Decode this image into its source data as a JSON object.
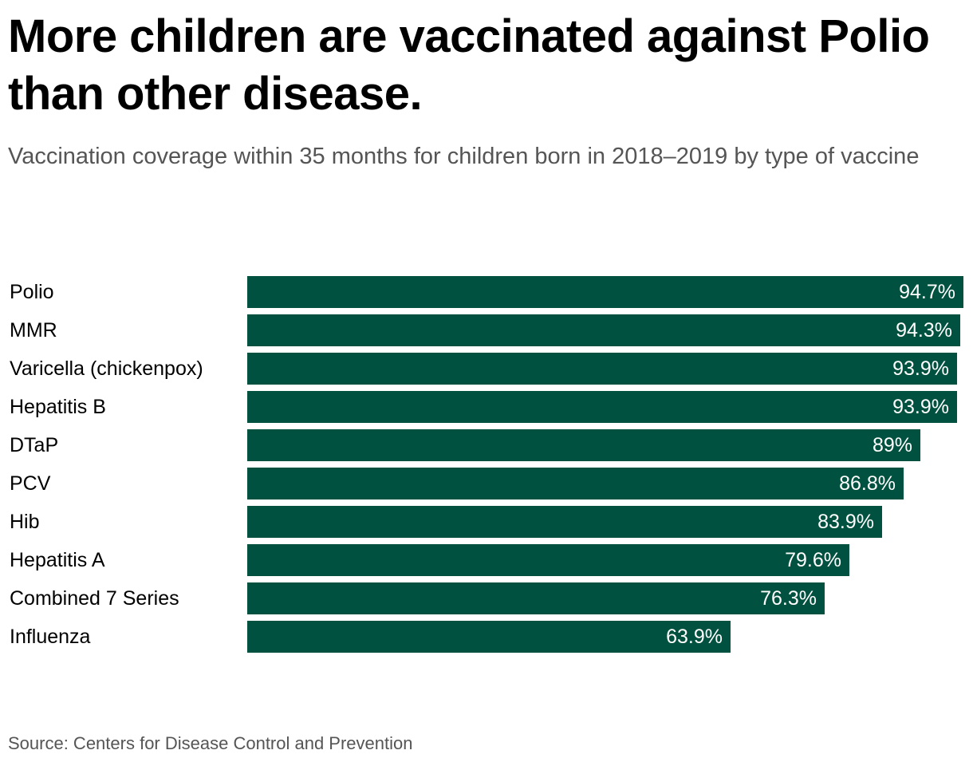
{
  "chart_data": {
    "type": "bar",
    "orientation": "horizontal",
    "title": "More children are vaccinated against Polio than other disease.",
    "subtitle": "Vaccination coverage within 35 months for children born in 2018–2019 by type of vaccine",
    "categories": [
      "Polio",
      "MMR",
      "Varicella (chickenpox)",
      "Hepatitis B",
      "DTaP",
      "PCV",
      "Hib",
      "Hepatitis A",
      "Combined 7 Series",
      "Influenza"
    ],
    "values": [
      94.7,
      94.3,
      93.9,
      93.9,
      89,
      86.8,
      83.9,
      79.6,
      76.3,
      63.9
    ],
    "value_labels": [
      "94.7%",
      "94.3%",
      "93.9%",
      "93.9%",
      "89%",
      "86.8%",
      "83.9%",
      "79.6%",
      "76.3%",
      "63.9%"
    ],
    "xlim": [
      0,
      94.7
    ],
    "grid": false,
    "legend": "none",
    "bar_color": "#00513f",
    "source": "Source: Centers for Disease Control and Prevention"
  }
}
